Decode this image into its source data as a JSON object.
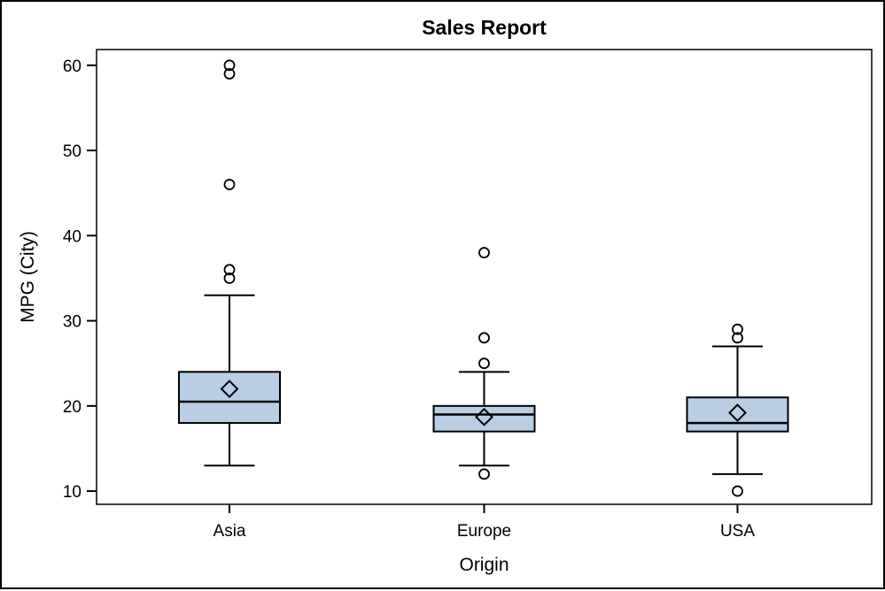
{
  "chart_data": {
    "type": "box",
    "title": "Sales Report",
    "xlabel": "Origin",
    "ylabel": "MPG (City)",
    "categories": [
      "Asia",
      "Europe",
      "USA"
    ],
    "yticks": [
      10,
      20,
      30,
      40,
      50,
      60
    ],
    "ylim": [
      8.45,
      61.85
    ],
    "grid": false,
    "legend": "none",
    "series": [
      {
        "category": "Asia",
        "whisker_low": 13,
        "q1": 18,
        "median": 20.5,
        "q3": 24,
        "whisker_high": 33,
        "mean": 22,
        "outliers": [
          35,
          36,
          46,
          59,
          60
        ]
      },
      {
        "category": "Europe",
        "whisker_low": 13,
        "q1": 17,
        "median": 19,
        "q3": 20,
        "whisker_high": 24,
        "mean": 18.7,
        "outliers": [
          12,
          25,
          28,
          38
        ]
      },
      {
        "category": "USA",
        "whisker_low": 12,
        "q1": 17,
        "median": 18,
        "q3": 21,
        "whisker_high": 27,
        "mean": 19.2,
        "outliers": [
          10,
          28,
          29
        ]
      }
    ],
    "colors": {
      "box_fill": "#B9CDE4",
      "line": "#000000",
      "background": "#FFFFFF",
      "border": "#000000"
    }
  }
}
